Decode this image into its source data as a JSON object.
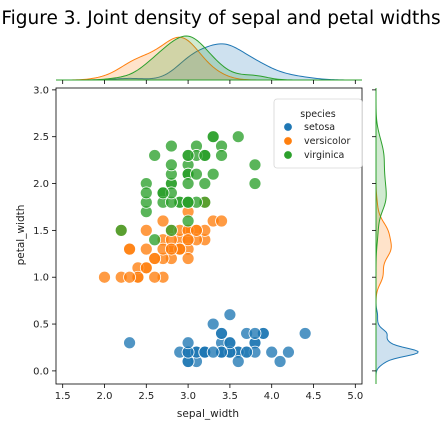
{
  "title": "Figure 3. Joint density of sepal and petal widths",
  "chart_data": {
    "type": "scatter",
    "title": "Figure 3. Joint density of sepal and petal widths",
    "xlabel": "sepal_width",
    "ylabel": "petal_width",
    "xlim": [
      1.42,
      5.08
    ],
    "ylim": [
      -0.14,
      3.02
    ],
    "xticks": [
      "1.5",
      "2.0",
      "2.5",
      "3.0",
      "3.5",
      "4.0",
      "4.5",
      "5.0"
    ],
    "yticks": [
      "0.0",
      "0.5",
      "1.0",
      "1.5",
      "2.0",
      "2.5",
      "3.0"
    ],
    "grid": false,
    "legend": {
      "title": "species",
      "position": "top-right"
    },
    "marginals": {
      "top": "kde of sepal_width by species",
      "right": "kde of petal_width by species"
    },
    "series": [
      {
        "name": "setosa",
        "color": "#1f77b4",
        "points": [
          [
            3.5,
            0.2
          ],
          [
            3.0,
            0.2
          ],
          [
            3.2,
            0.2
          ],
          [
            3.1,
            0.2
          ],
          [
            3.6,
            0.2
          ],
          [
            3.9,
            0.4
          ],
          [
            3.4,
            0.3
          ],
          [
            3.4,
            0.2
          ],
          [
            2.9,
            0.2
          ],
          [
            3.1,
            0.1
          ],
          [
            3.7,
            0.2
          ],
          [
            3.4,
            0.2
          ],
          [
            3.0,
            0.1
          ],
          [
            3.0,
            0.1
          ],
          [
            4.0,
            0.2
          ],
          [
            4.4,
            0.4
          ],
          [
            3.9,
            0.4
          ],
          [
            3.5,
            0.3
          ],
          [
            3.8,
            0.3
          ],
          [
            3.8,
            0.3
          ],
          [
            3.4,
            0.2
          ],
          [
            3.7,
            0.4
          ],
          [
            3.6,
            0.2
          ],
          [
            3.3,
            0.5
          ],
          [
            3.4,
            0.2
          ],
          [
            3.0,
            0.2
          ],
          [
            3.4,
            0.4
          ],
          [
            3.5,
            0.2
          ],
          [
            3.4,
            0.2
          ],
          [
            3.2,
            0.2
          ],
          [
            3.1,
            0.2
          ],
          [
            3.4,
            0.4
          ],
          [
            4.1,
            0.1
          ],
          [
            4.2,
            0.2
          ],
          [
            3.1,
            0.2
          ],
          [
            3.2,
            0.2
          ],
          [
            3.5,
            0.2
          ],
          [
            3.6,
            0.1
          ],
          [
            3.0,
            0.2
          ],
          [
            3.4,
            0.2
          ],
          [
            3.5,
            0.3
          ],
          [
            2.3,
            0.3
          ],
          [
            3.2,
            0.2
          ],
          [
            3.5,
            0.6
          ],
          [
            3.8,
            0.4
          ],
          [
            3.0,
            0.3
          ],
          [
            3.8,
            0.2
          ],
          [
            3.2,
            0.2
          ],
          [
            3.7,
            0.2
          ],
          [
            3.3,
            0.2
          ]
        ]
      },
      {
        "name": "versicolor",
        "color": "#ff7f0e",
        "points": [
          [
            3.2,
            1.4
          ],
          [
            3.2,
            1.5
          ],
          [
            3.1,
            1.5
          ],
          [
            2.3,
            1.3
          ],
          [
            2.8,
            1.5
          ],
          [
            2.8,
            1.3
          ],
          [
            3.3,
            1.6
          ],
          [
            2.4,
            1.0
          ],
          [
            2.9,
            1.3
          ],
          [
            2.7,
            1.4
          ],
          [
            2.0,
            1.0
          ],
          [
            3.0,
            1.5
          ],
          [
            2.2,
            1.0
          ],
          [
            2.9,
            1.4
          ],
          [
            2.9,
            1.3
          ],
          [
            3.1,
            1.4
          ],
          [
            3.0,
            1.5
          ],
          [
            2.7,
            1.0
          ],
          [
            2.2,
            1.5
          ],
          [
            2.5,
            1.1
          ],
          [
            3.2,
            1.8
          ],
          [
            2.8,
            1.3
          ],
          [
            2.5,
            1.5
          ],
          [
            2.8,
            1.2
          ],
          [
            2.9,
            1.3
          ],
          [
            3.0,
            1.4
          ],
          [
            2.8,
            1.4
          ],
          [
            3.0,
            1.7
          ],
          [
            2.9,
            1.5
          ],
          [
            2.6,
            1.0
          ],
          [
            2.4,
            1.1
          ],
          [
            2.4,
            1.0
          ],
          [
            2.7,
            1.2
          ],
          [
            2.7,
            1.6
          ],
          [
            3.0,
            1.5
          ],
          [
            3.4,
            1.6
          ],
          [
            3.1,
            1.5
          ],
          [
            2.3,
            1.3
          ],
          [
            3.0,
            1.3
          ],
          [
            2.5,
            1.3
          ],
          [
            2.6,
            1.2
          ],
          [
            3.0,
            1.4
          ],
          [
            2.6,
            1.2
          ],
          [
            2.3,
            1.0
          ],
          [
            2.7,
            1.3
          ],
          [
            3.0,
            1.2
          ],
          [
            2.9,
            1.3
          ],
          [
            2.9,
            1.3
          ],
          [
            2.5,
            1.1
          ],
          [
            2.8,
            1.3
          ]
        ]
      },
      {
        "name": "virginica",
        "color": "#2ca02c",
        "points": [
          [
            3.3,
            2.5
          ],
          [
            2.7,
            1.9
          ],
          [
            3.0,
            2.1
          ],
          [
            2.9,
            1.8
          ],
          [
            3.0,
            2.2
          ],
          [
            3.0,
            2.1
          ],
          [
            2.5,
            1.7
          ],
          [
            2.9,
            1.8
          ],
          [
            2.5,
            1.8
          ],
          [
            3.6,
            2.5
          ],
          [
            3.2,
            2.0
          ],
          [
            2.7,
            1.9
          ],
          [
            3.0,
            2.1
          ],
          [
            2.5,
            2.0
          ],
          [
            2.8,
            2.4
          ],
          [
            3.2,
            2.3
          ],
          [
            3.0,
            1.8
          ],
          [
            3.8,
            2.2
          ],
          [
            2.6,
            2.3
          ],
          [
            2.2,
            1.5
          ],
          [
            3.2,
            2.3
          ],
          [
            2.8,
            2.0
          ],
          [
            2.8,
            2.0
          ],
          [
            2.7,
            1.8
          ],
          [
            3.3,
            2.1
          ],
          [
            3.2,
            1.8
          ],
          [
            2.8,
            1.8
          ],
          [
            3.0,
            1.8
          ],
          [
            2.8,
            2.1
          ],
          [
            3.0,
            1.6
          ],
          [
            2.8,
            1.9
          ],
          [
            3.8,
            2.0
          ],
          [
            2.8,
            2.2
          ],
          [
            2.8,
            1.5
          ],
          [
            2.6,
            1.4
          ],
          [
            3.0,
            2.3
          ],
          [
            3.4,
            2.4
          ],
          [
            3.1,
            1.8
          ],
          [
            3.0,
            1.8
          ],
          [
            3.1,
            2.1
          ],
          [
            3.1,
            2.4
          ],
          [
            3.1,
            2.3
          ],
          [
            2.7,
            1.9
          ],
          [
            3.2,
            2.3
          ],
          [
            3.3,
            2.5
          ],
          [
            3.0,
            2.3
          ],
          [
            2.5,
            1.9
          ],
          [
            3.0,
            2.0
          ],
          [
            3.4,
            2.3
          ],
          [
            3.0,
            1.8
          ]
        ]
      }
    ]
  }
}
